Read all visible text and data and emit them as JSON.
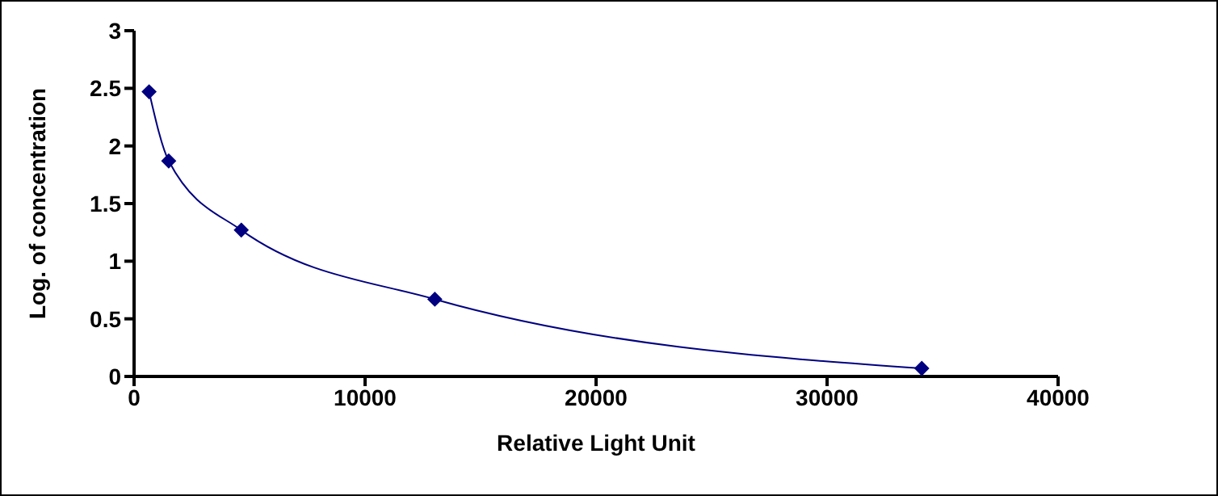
{
  "chart_data": {
    "type": "line",
    "xlabel": "Relative Light Unit",
    "ylabel": "Log. of concentration",
    "x": [
      650,
      1500,
      4640,
      13020,
      34100
    ],
    "series": [
      {
        "color": "#000080",
        "values": [
          2.47,
          1.87,
          1.27,
          0.67,
          0.07
        ]
      }
    ],
    "xlim": [
      0,
      40000
    ],
    "xticks": [
      0,
      10000,
      20000,
      30000,
      40000
    ],
    "ylim": [
      0,
      3
    ],
    "yticks": [
      0,
      0.5,
      1,
      1.5,
      2,
      2.5,
      3
    ],
    "grid": false,
    "legend": false,
    "marker": "diamond",
    "line_style": "solid"
  }
}
